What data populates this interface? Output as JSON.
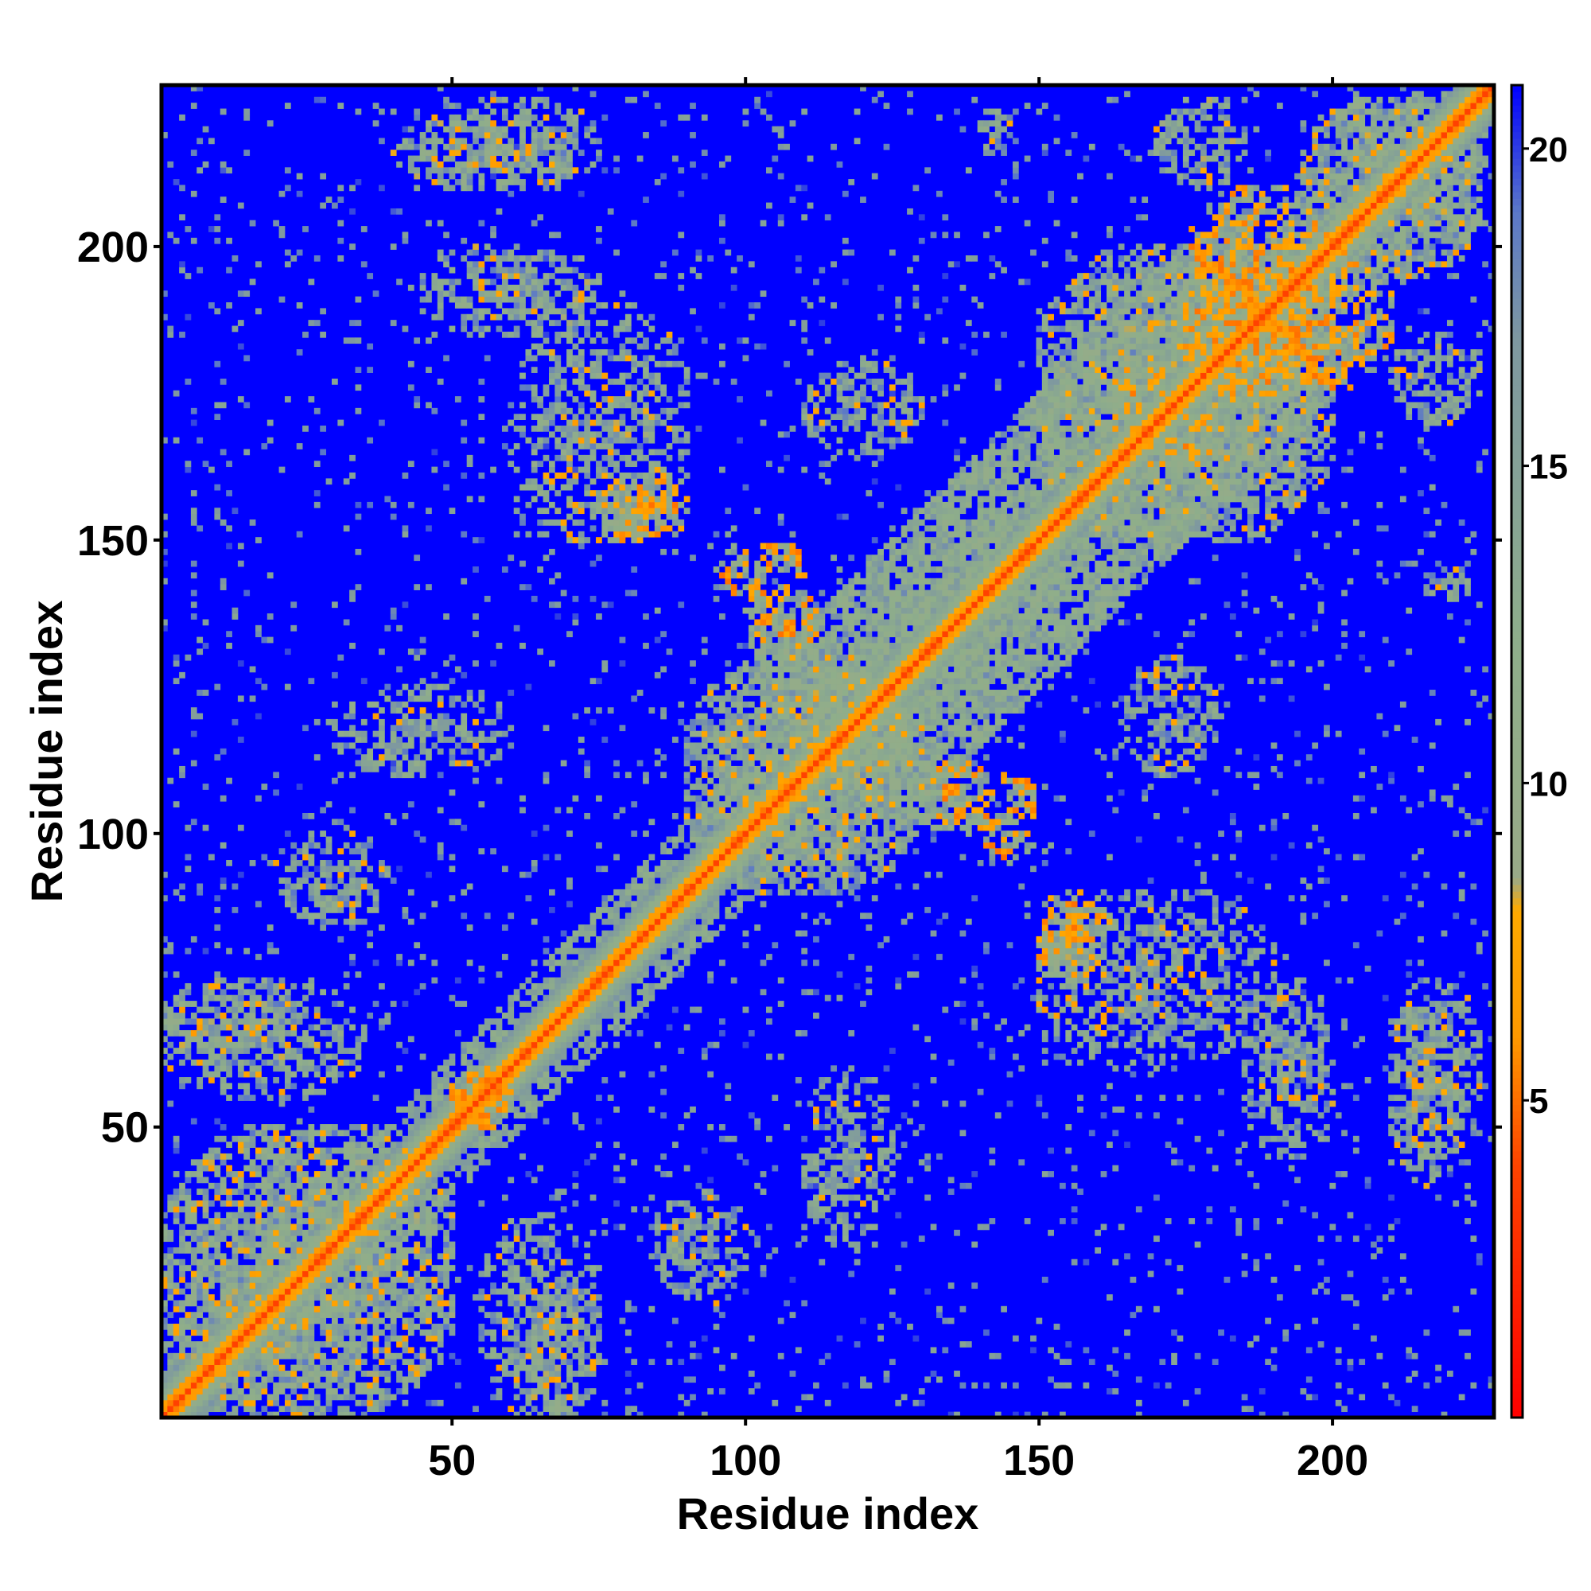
{
  "chart_data": {
    "type": "heatmap",
    "title": "",
    "xlabel": "Residue index",
    "ylabel": "Residue index",
    "n_residues": 227,
    "xlim": [
      1,
      227
    ],
    "ylim": [
      1,
      227
    ],
    "x_ticks": [
      50,
      100,
      150,
      200
    ],
    "y_ticks": [
      50,
      100,
      150,
      200
    ],
    "colorbar": {
      "ticks": [
        5,
        10,
        15,
        20
      ],
      "range": [
        0,
        21
      ],
      "colors": [
        {
          "value": 0,
          "color": "#ff0000"
        },
        {
          "value": 4,
          "color": "#ff4400"
        },
        {
          "value": 6,
          "color": "#ff9900"
        },
        {
          "value": 8,
          "color": "#ffaa00"
        },
        {
          "value": 8.5,
          "color": "#99aa88"
        },
        {
          "value": 12,
          "color": "#8fae8a"
        },
        {
          "value": 17,
          "color": "#7e98a0"
        },
        {
          "value": 19,
          "color": "#5b78c8"
        },
        {
          "value": 21,
          "color": "#0000ff"
        }
      ]
    },
    "background_color": "#0000ff",
    "symmetric": true,
    "diagonal_value": 3.8,
    "contact_regions": [
      {
        "i": [
          1,
          50
        ],
        "j": [
          1,
          50
        ],
        "level": "medium"
      },
      {
        "i": [
          50,
          60
        ],
        "j": [
          50,
          60
        ],
        "level": "strong-cross"
      },
      {
        "i": [
          55,
          75
        ],
        "j": [
          1,
          35
        ],
        "level": "medium"
      },
      {
        "i": [
          1,
          25
        ],
        "j": [
          60,
          75
        ],
        "level": "medium"
      },
      {
        "i": [
          20,
          40
        ],
        "j": [
          85,
          100
        ],
        "level": "medium"
      },
      {
        "i": [
          30,
          60
        ],
        "j": [
          110,
          125
        ],
        "level": "medium"
      },
      {
        "i": [
          45,
          75
        ],
        "j": [
          185,
          200
        ],
        "level": "medium"
      },
      {
        "i": [
          45,
          75
        ],
        "j": [
          210,
          225
        ],
        "level": "medium"
      },
      {
        "i": [
          60,
          90
        ],
        "j": [
          150,
          190
        ],
        "level": "medium"
      },
      {
        "i": [
          80,
          90
        ],
        "j": [
          150,
          160
        ],
        "level": "strong"
      },
      {
        "i": [
          90,
          130
        ],
        "j": [
          90,
          130
        ],
        "level": "medium"
      },
      {
        "i": [
          100,
          112
        ],
        "j": [
          130,
          142
        ],
        "level": "strong"
      },
      {
        "i": [
          100,
          200
        ],
        "j": [
          100,
          200
        ],
        "level": "diagonal-band"
      },
      {
        "i": [
          110,
          130
        ],
        "j": [
          165,
          180
        ],
        "level": "medium"
      },
      {
        "i": [
          140,
          150
        ],
        "j": [
          95,
          110
        ],
        "level": "strong"
      },
      {
        "i": [
          150,
          160
        ],
        "j": [
          75,
          85
        ],
        "level": "strong"
      },
      {
        "i": [
          150,
          200
        ],
        "j": [
          150,
          200
        ],
        "level": "medium"
      },
      {
        "i": [
          160,
          170
        ],
        "j": [
          175,
          180
        ],
        "level": "strong"
      },
      {
        "i": [
          175,
          200
        ],
        "j": [
          175,
          210
        ],
        "level": "strong-cross"
      },
      {
        "i": [
          195,
          225
        ],
        "j": [
          195,
          225
        ],
        "level": "medium"
      },
      {
        "i": [
          170,
          185
        ],
        "j": [
          210,
          225
        ],
        "level": "medium"
      },
      {
        "i": [
          210,
          220
        ],
        "j": [
          40,
          70
        ],
        "level": "medium"
      },
      {
        "i": [
          215,
          225
        ],
        "j": [
          140,
          145
        ],
        "level": "medium"
      }
    ]
  }
}
